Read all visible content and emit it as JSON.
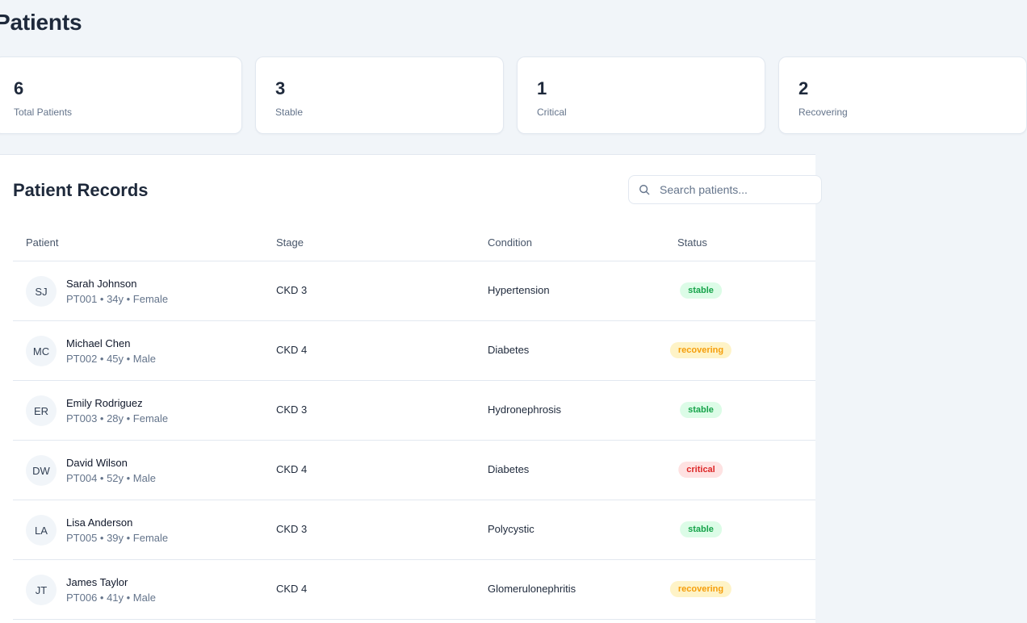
{
  "page": {
    "title": "Patients"
  },
  "stats": [
    {
      "value": "6",
      "label": "Total Patients"
    },
    {
      "value": "3",
      "label": "Stable"
    },
    {
      "value": "1",
      "label": "Critical"
    },
    {
      "value": "2",
      "label": "Recovering"
    }
  ],
  "records": {
    "title": "Patient Records",
    "search": {
      "placeholder": "Search patients...",
      "value": ""
    },
    "columns": {
      "patient": "Patient",
      "stage": "Stage",
      "condition": "Condition",
      "status": "Status"
    },
    "rows": [
      {
        "initials": "SJ",
        "name": "Sarah Johnson",
        "meta": "PT001 • 34y • Female",
        "stage": "CKD 3",
        "condition": "Hypertension",
        "status": "stable"
      },
      {
        "initials": "MC",
        "name": "Michael Chen",
        "meta": "PT002 • 45y • Male",
        "stage": "CKD 4",
        "condition": "Diabetes",
        "status": "recovering"
      },
      {
        "initials": "ER",
        "name": "Emily Rodriguez",
        "meta": "PT003 • 28y • Female",
        "stage": "CKD 3",
        "condition": "Hydronephrosis",
        "status": "stable"
      },
      {
        "initials": "DW",
        "name": "David Wilson",
        "meta": "PT004 • 52y • Male",
        "stage": "CKD 4",
        "condition": "Diabetes",
        "status": "critical"
      },
      {
        "initials": "LA",
        "name": "Lisa Anderson",
        "meta": "PT005 • 39y • Female",
        "stage": "CKD 3",
        "condition": "Polycystic",
        "status": "stable"
      },
      {
        "initials": "JT",
        "name": "James Taylor",
        "meta": "PT006 • 41y • Male",
        "stage": "CKD 4",
        "condition": "Glomerulonephritis",
        "status": "recovering"
      }
    ]
  },
  "status_colors": {
    "stable": {
      "background": "#dcfce7",
      "text": "#16a34a"
    },
    "recovering": {
      "background": "#fef3c7",
      "text": "#f59e0b"
    },
    "critical": {
      "background": "#fee2e2",
      "text": "#dc2626"
    }
  },
  "icons": {
    "search": "search-icon"
  }
}
